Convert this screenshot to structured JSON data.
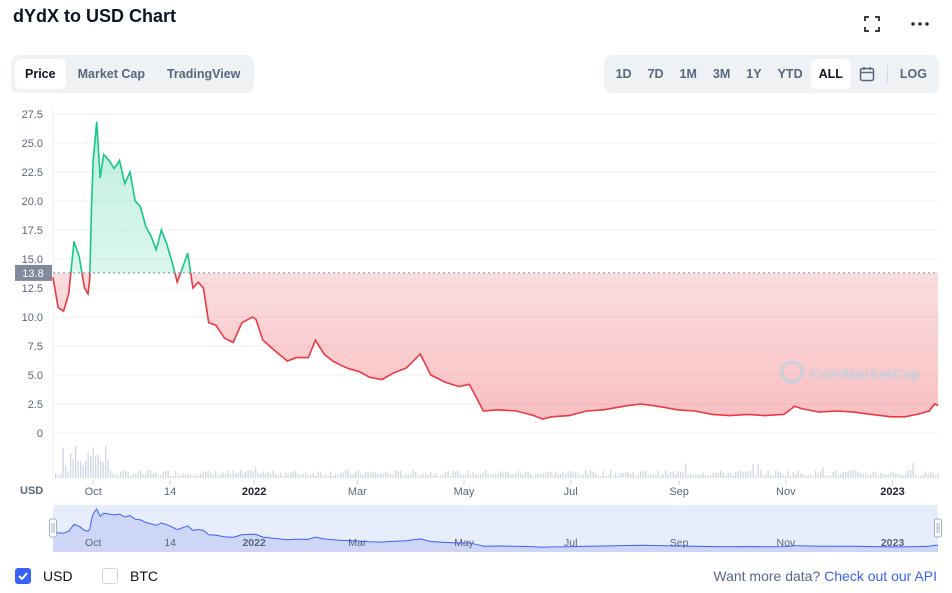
{
  "header": {
    "title": "dYdX to USD Chart"
  },
  "tabs": [
    {
      "label": "Price",
      "active": true
    },
    {
      "label": "Market Cap",
      "active": false
    },
    {
      "label": "TradingView",
      "active": false
    }
  ],
  "ranges": [
    {
      "label": "1D",
      "active": false
    },
    {
      "label": "7D",
      "active": false
    },
    {
      "label": "1M",
      "active": false
    },
    {
      "label": "3M",
      "active": false
    },
    {
      "label": "1Y",
      "active": false
    },
    {
      "label": "YTD",
      "active": false
    },
    {
      "label": "ALL",
      "active": true
    }
  ],
  "log_label": "LOG",
  "footer": {
    "usd_label": "USD",
    "usd_checked": true,
    "btc_label": "BTC",
    "btc_checked": false,
    "api_prefix": "Want more data?",
    "api_link": "Check out our API"
  },
  "colors": {
    "up": "#16c784",
    "down": "#ea3943",
    "accent": "#3861fb",
    "navigator_fill": "#e8edfd"
  },
  "chart_data": {
    "type": "area",
    "currency_label": "USD",
    "watermark": "CoinMarketCap",
    "baseline_value": 13.8,
    "baseline_label": "13.8",
    "ylim": [
      0,
      27.5
    ],
    "yticks": [
      {
        "label": "0",
        "value": 0
      },
      {
        "label": "2.5",
        "value": 2.5
      },
      {
        "label": "5.0",
        "value": 5
      },
      {
        "label": "7.5",
        "value": 7.5
      },
      {
        "label": "10.0",
        "value": 10
      },
      {
        "label": "12.5",
        "value": 12.5
      },
      {
        "label": "15.0",
        "value": 15
      },
      {
        "label": "17.5",
        "value": 17.5
      },
      {
        "label": "20.0",
        "value": 20
      },
      {
        "label": "22.5",
        "value": 22.5
      },
      {
        "label": "25.0",
        "value": 25
      },
      {
        "label": "27.5",
        "value": 27.5
      }
    ],
    "xlim": [
      "2021-09-08",
      "2023-01-27"
    ],
    "xticks": [
      {
        "label": "Oct",
        "date": "2021-10-01"
      },
      {
        "label": "14",
        "date": "2021-11-14"
      },
      {
        "label": "2022",
        "date": "2022-01-01",
        "bold": true
      },
      {
        "label": "Mar",
        "date": "2022-03-01"
      },
      {
        "label": "May",
        "date": "2022-05-01"
      },
      {
        "label": "Jul",
        "date": "2022-07-01"
      },
      {
        "label": "Sep",
        "date": "2022-09-01"
      },
      {
        "label": "Nov",
        "date": "2022-11-01"
      },
      {
        "label": "2023",
        "date": "2023-01-01",
        "bold": true
      }
    ],
    "series": [
      {
        "x": [
          "2021-09-08",
          "2021-09-11",
          "2021-09-14",
          "2021-09-17",
          "2021-09-20",
          "2021-09-23",
          "2021-09-26",
          "2021-09-28",
          "2021-09-29",
          "2021-09-30",
          "2021-10-01",
          "2021-10-03",
          "2021-10-05",
          "2021-10-07",
          "2021-10-10",
          "2021-10-13",
          "2021-10-16",
          "2021-10-19",
          "2021-10-22",
          "2021-10-25",
          "2021-10-28",
          "2021-10-31",
          "2021-11-03",
          "2021-11-06",
          "2021-11-09",
          "2021-11-12",
          "2021-11-15",
          "2021-11-18",
          "2021-11-21",
          "2021-11-24",
          "2021-11-27",
          "2021-11-30",
          "2021-12-03",
          "2021-12-06",
          "2021-12-10",
          "2021-12-15",
          "2021-12-20",
          "2021-12-25",
          "2021-12-31",
          "2022-01-02",
          "2022-01-06",
          "2022-01-12",
          "2022-01-20",
          "2022-01-25",
          "2022-02-01",
          "2022-02-05",
          "2022-02-10",
          "2022-02-15",
          "2022-02-20",
          "2022-02-25",
          "2022-03-02",
          "2022-03-08",
          "2022-03-15",
          "2022-03-22",
          "2022-03-29",
          "2022-04-02",
          "2022-04-06",
          "2022-04-12",
          "2022-04-20",
          "2022-04-28",
          "2022-05-04",
          "2022-05-09",
          "2022-05-12",
          "2022-05-20",
          "2022-05-31",
          "2022-06-10",
          "2022-06-15",
          "2022-06-20",
          "2022-06-30",
          "2022-07-10",
          "2022-07-20",
          "2022-07-31",
          "2022-08-10",
          "2022-08-20",
          "2022-08-31",
          "2022-09-10",
          "2022-09-20",
          "2022-09-30",
          "2022-10-10",
          "2022-10-20",
          "2022-10-31",
          "2022-11-06",
          "2022-11-10",
          "2022-11-20",
          "2022-11-30",
          "2022-12-10",
          "2022-12-20",
          "2022-12-31",
          "2023-01-08",
          "2023-01-15",
          "2023-01-22",
          "2023-01-25",
          "2023-01-27"
        ],
        "y": [
          13.4,
          10.8,
          10.5,
          12.0,
          16.5,
          15.2,
          12.5,
          12.0,
          13.2,
          19.5,
          23.5,
          26.8,
          22.0,
          24.0,
          23.5,
          22.8,
          23.5,
          21.5,
          22.5,
          20.0,
          19.5,
          17.8,
          17.0,
          15.8,
          17.5,
          16.3,
          14.8,
          13.0,
          14.2,
          15.5,
          12.5,
          13.0,
          12.5,
          9.5,
          9.3,
          8.2,
          7.8,
          9.5,
          10.0,
          9.8,
          8.0,
          7.2,
          6.2,
          6.5,
          6.5,
          8.0,
          6.8,
          6.2,
          5.8,
          5.5,
          5.3,
          4.8,
          4.6,
          5.2,
          5.6,
          6.2,
          6.8,
          5.0,
          4.4,
          4.0,
          4.2,
          2.8,
          1.9,
          2.0,
          1.9,
          1.5,
          1.2,
          1.4,
          1.5,
          1.9,
          2.0,
          2.3,
          2.5,
          2.3,
          2.0,
          1.9,
          1.6,
          1.5,
          1.6,
          1.5,
          1.6,
          2.3,
          2.1,
          1.8,
          1.9,
          1.8,
          1.6,
          1.4,
          1.4,
          1.6,
          1.9,
          2.5,
          2.4
        ]
      }
    ]
  }
}
